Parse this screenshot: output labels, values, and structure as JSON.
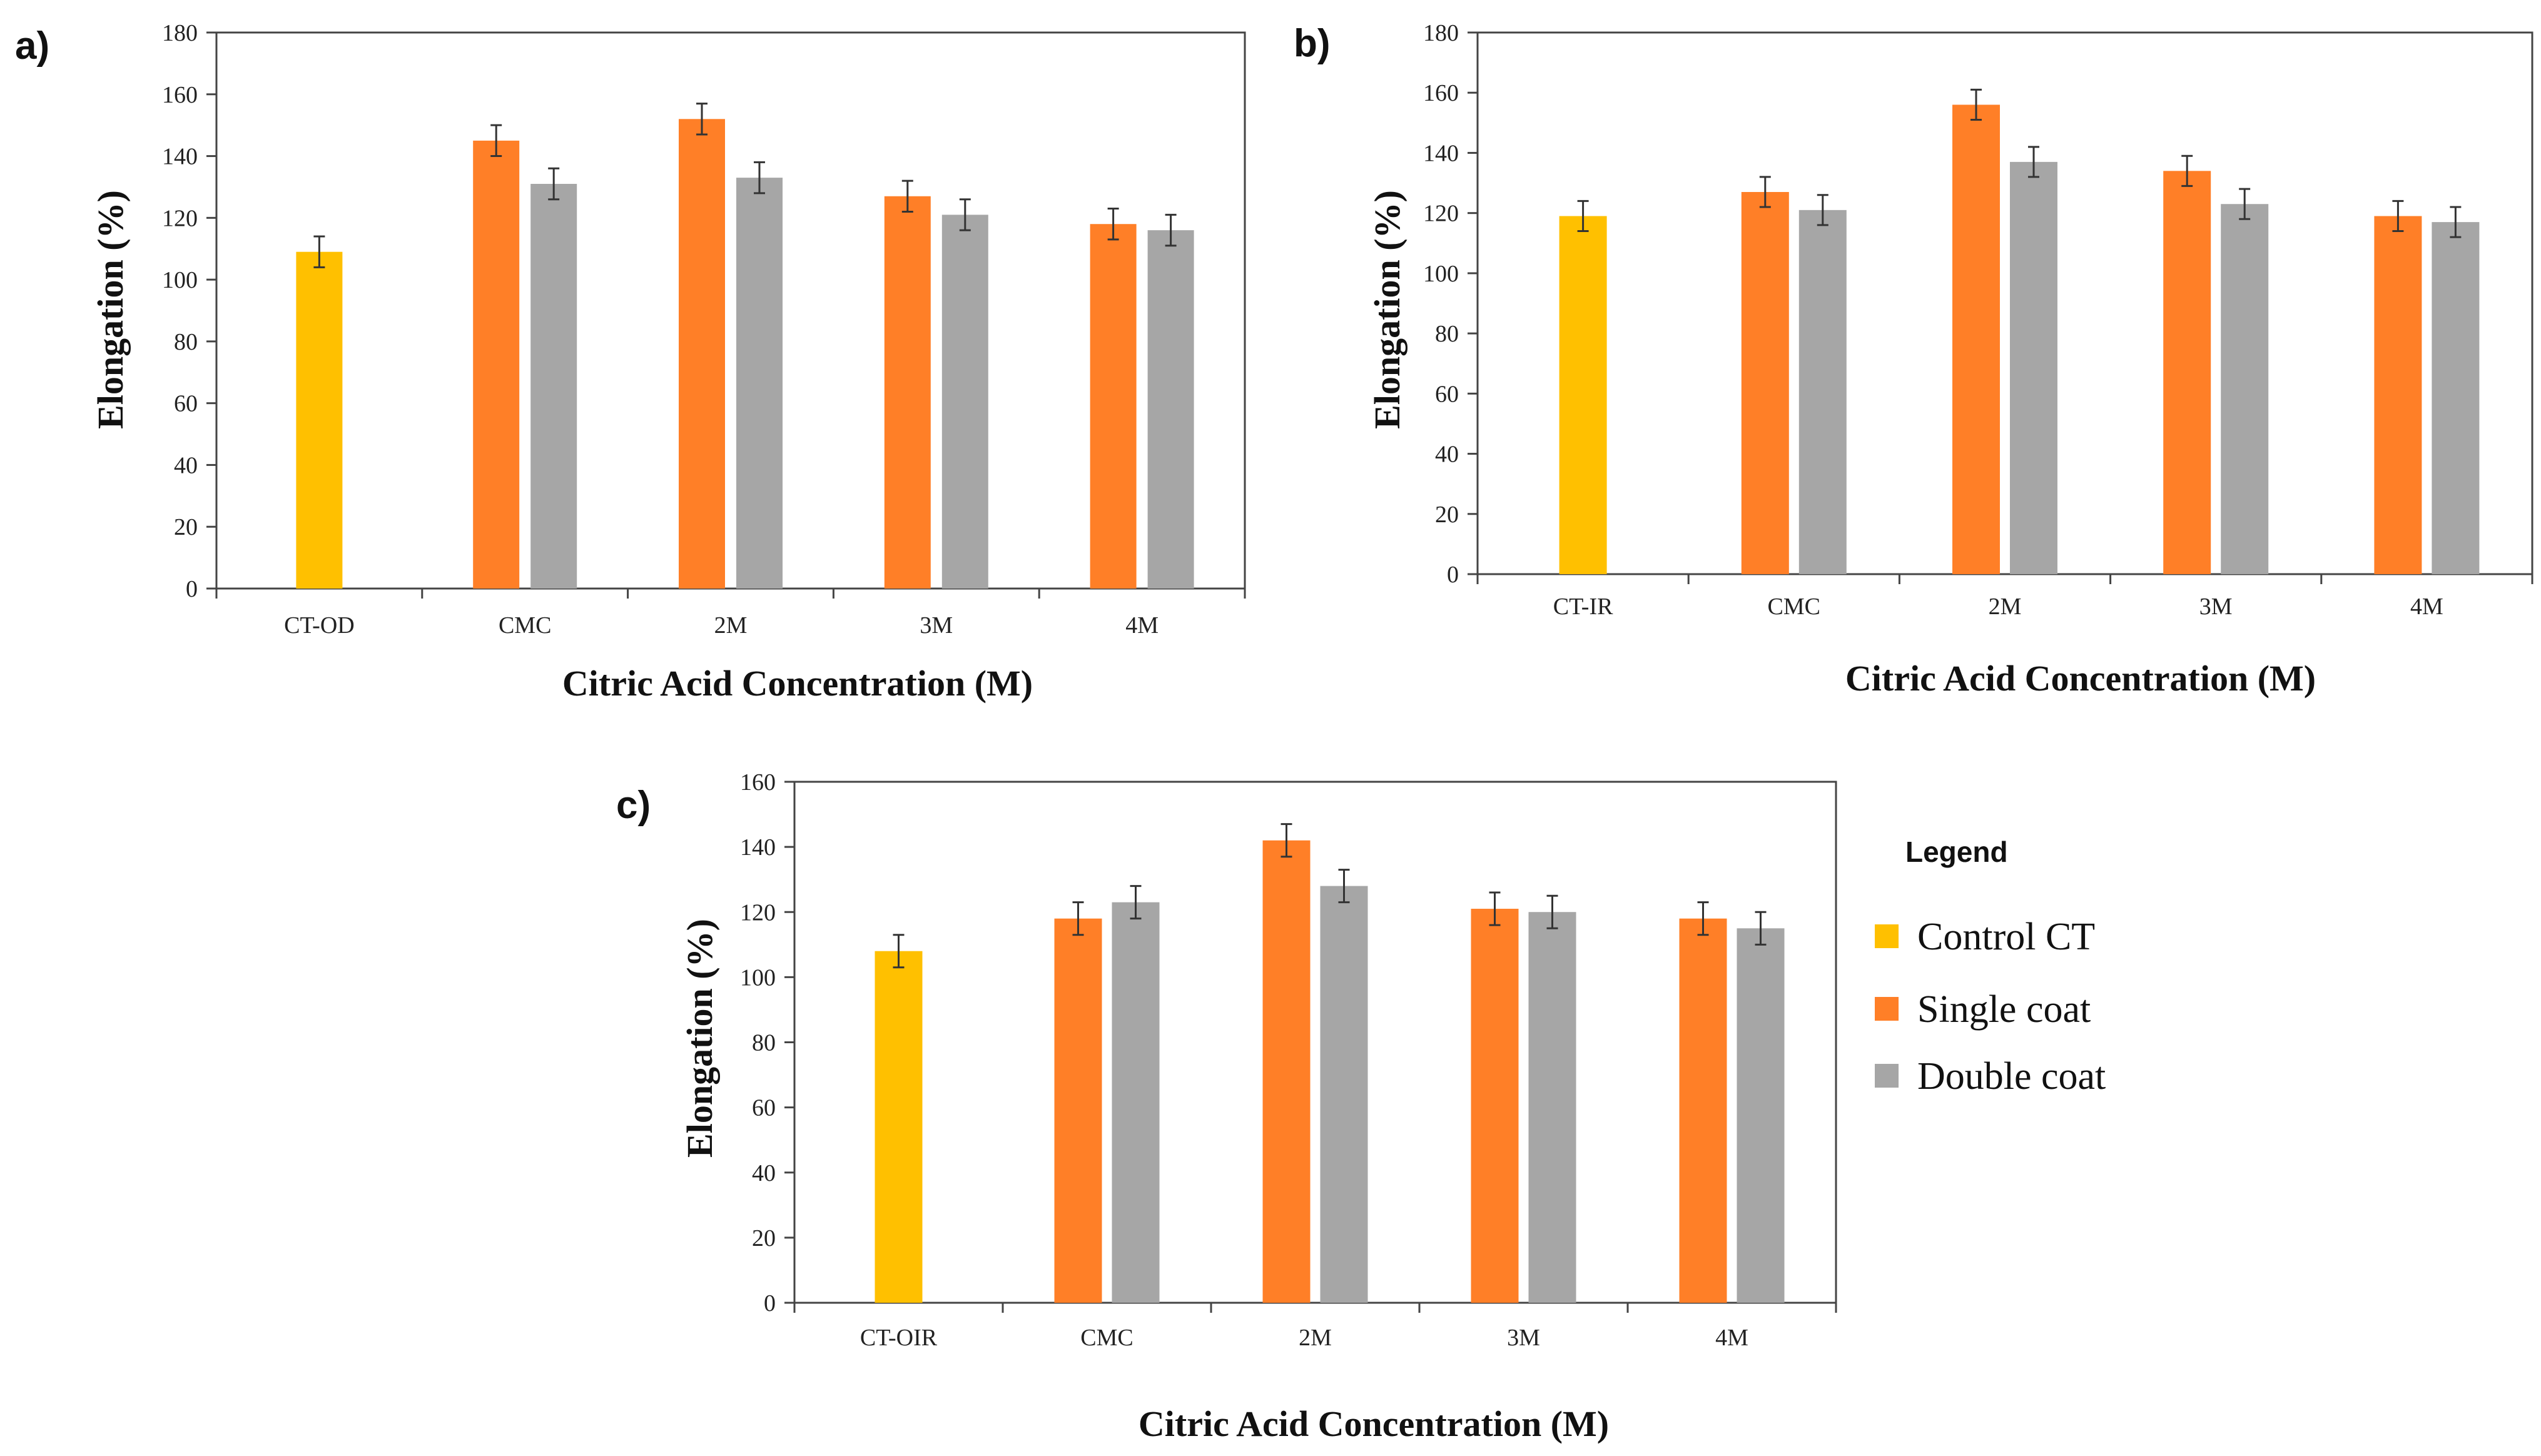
{
  "colors": {
    "control": "#FFC000",
    "single": "#FF7F27",
    "double": "#A6A6A6",
    "axis": "#444444",
    "error": "#333333"
  },
  "legend": {
    "title": "Legend",
    "items": [
      {
        "label": "Control CT",
        "color_key": "control"
      },
      {
        "label": "Single coat",
        "color_key": "single"
      },
      {
        "label": "Double coat",
        "color_key": "double"
      }
    ]
  },
  "chart_data": [
    {
      "panel": "a)",
      "type": "bar",
      "xlabel": "Citric Acid Concentration (M)",
      "ylabel": "Elongation (%)",
      "ylim": [
        0,
        180
      ],
      "yticks": [
        0,
        20,
        40,
        60,
        80,
        100,
        120,
        140,
        160,
        180
      ],
      "categories": [
        "CT-OD",
        "CMC",
        "2M",
        "3M",
        "4M"
      ],
      "control": {
        "category": "CT-OD",
        "value": 109,
        "error": 5
      },
      "series": [
        {
          "name": "Single coat",
          "color_key": "single",
          "values": [
            null,
            145,
            152,
            127,
            118
          ],
          "errors": [
            null,
            5,
            5,
            5,
            5
          ]
        },
        {
          "name": "Double coat",
          "color_key": "double",
          "values": [
            null,
            131,
            133,
            121,
            116
          ],
          "errors": [
            null,
            5,
            5,
            5,
            5
          ]
        }
      ]
    },
    {
      "panel": "b)",
      "type": "bar",
      "xlabel": "Citric Acid Concentration (M)",
      "ylabel": "Elongation (%)",
      "ylim": [
        0,
        180
      ],
      "yticks": [
        0,
        20,
        40,
        60,
        80,
        100,
        120,
        140,
        160,
        180
      ],
      "categories": [
        "CT-IR",
        "CMC",
        "2M",
        "3M",
        "4M"
      ],
      "control": {
        "category": "CT-IR",
        "value": 119,
        "error": 5
      },
      "series": [
        {
          "name": "Single coat",
          "color_key": "single",
          "values": [
            null,
            127,
            156,
            134,
            119
          ],
          "errors": [
            null,
            5,
            5,
            5,
            5
          ]
        },
        {
          "name": "Double coat",
          "color_key": "double",
          "values": [
            null,
            121,
            137,
            123,
            117
          ],
          "errors": [
            null,
            5,
            5,
            5,
            5
          ]
        }
      ]
    },
    {
      "panel": "c)",
      "type": "bar",
      "xlabel": "Citric Acid Concentration (M)",
      "ylabel": "Elongation (%)",
      "ylim": [
        0,
        160
      ],
      "yticks": [
        0,
        20,
        40,
        60,
        80,
        100,
        120,
        140,
        160
      ],
      "categories": [
        "CT-OIR",
        "CMC",
        "2M",
        "3M",
        "4M"
      ],
      "control": {
        "category": "CT-OIR",
        "value": 108,
        "error": 5
      },
      "series": [
        {
          "name": "Single coat",
          "color_key": "single",
          "values": [
            null,
            118,
            142,
            121,
            118
          ],
          "errors": [
            null,
            5,
            5,
            5,
            5
          ]
        },
        {
          "name": "Double coat",
          "color_key": "double",
          "values": [
            null,
            123,
            128,
            120,
            115
          ],
          "errors": [
            null,
            5,
            5,
            5,
            5
          ]
        }
      ]
    }
  ]
}
